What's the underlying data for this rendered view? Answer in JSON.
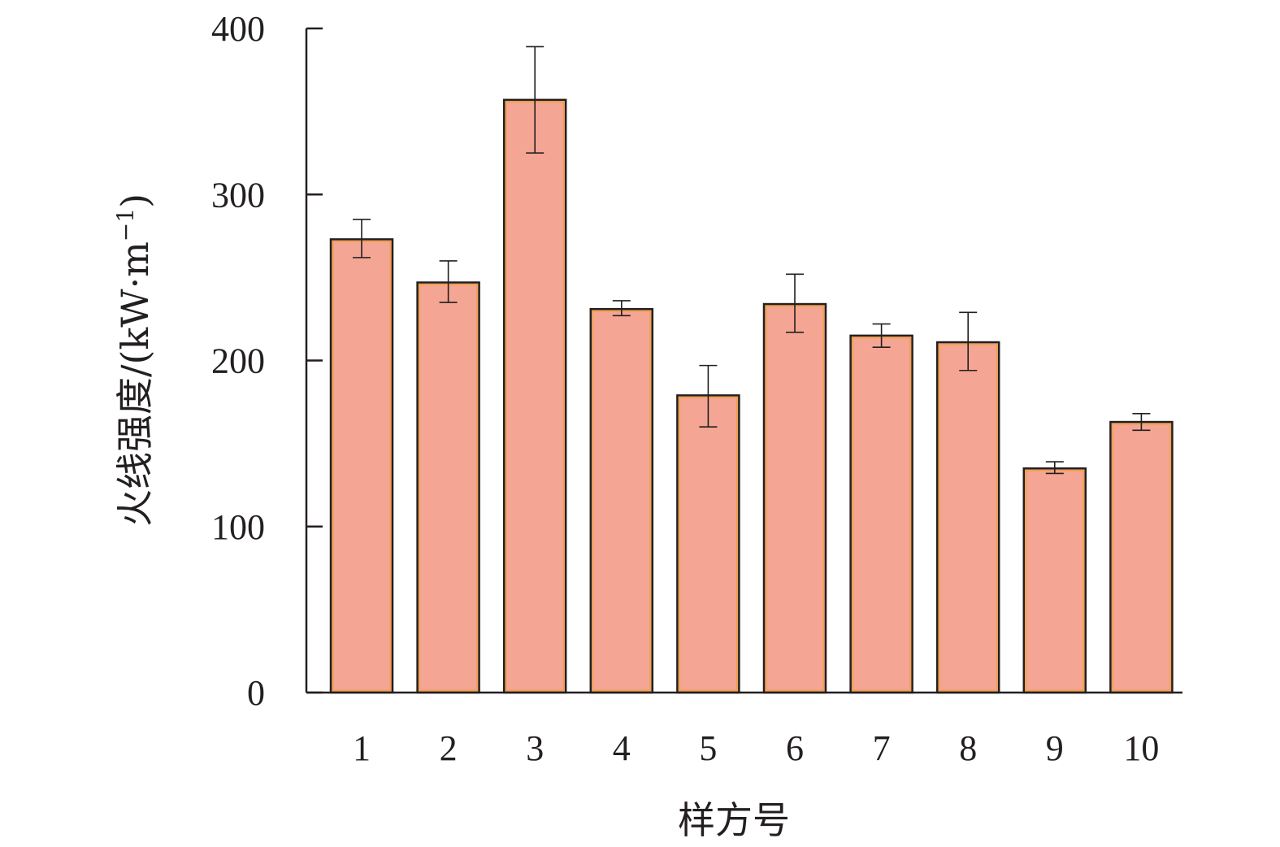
{
  "chart_data": {
    "type": "bar",
    "title": "",
    "xlabel": "样方号",
    "ylabel_main": "火线强度/(kW·m",
    "ylabel_sup": "−1",
    "ylabel_close": ")",
    "categories": [
      "1",
      "2",
      "3",
      "4",
      "5",
      "6",
      "7",
      "8",
      "9",
      "10"
    ],
    "values": [
      273,
      247,
      357,
      231,
      179,
      234,
      215,
      211,
      135,
      163
    ],
    "error_low": [
      262,
      235,
      325,
      227,
      160,
      217,
      208,
      194,
      132,
      158
    ],
    "error_high": [
      285,
      260,
      389,
      236,
      197,
      252,
      222,
      229,
      139,
      168
    ],
    "ylim": [
      0,
      400
    ],
    "yticks": [
      0,
      100,
      200,
      300,
      400
    ],
    "grid": false,
    "bar_color": "#f4a593",
    "bar_edge_color": "#f0a050",
    "axis_color": "#231f20"
  }
}
